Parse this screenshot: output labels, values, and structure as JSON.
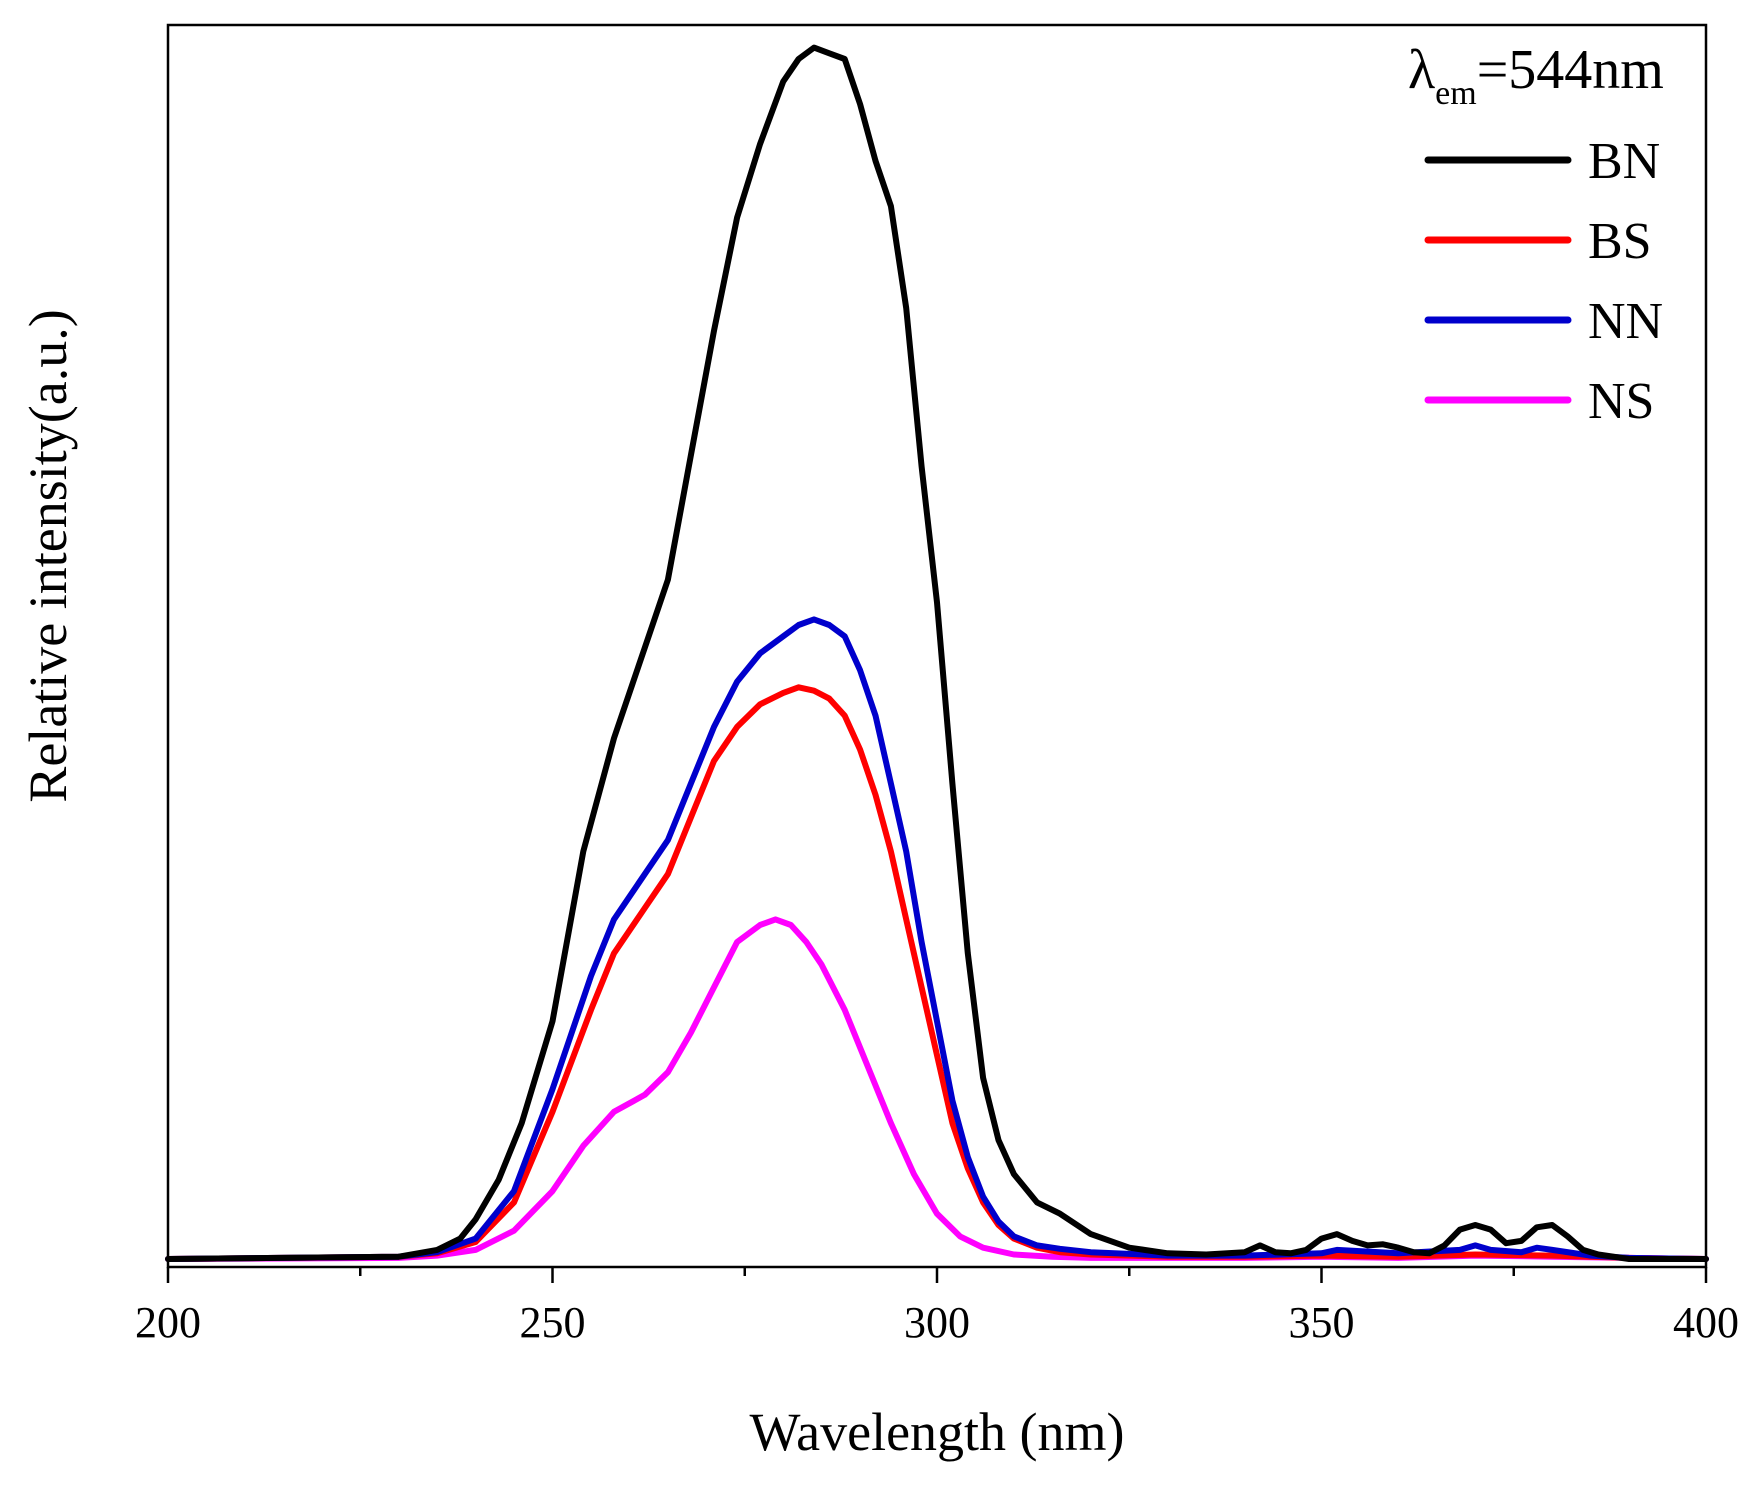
{
  "chart_data": {
    "type": "line",
    "title": "",
    "xlabel": "Wavelength (nm)",
    "ylabel": "Relative intensity(a.u.)",
    "xlim": [
      200,
      400
    ],
    "ylim": [
      0,
      1.09
    ],
    "x_ticks": [
      200,
      250,
      300,
      350,
      400
    ],
    "y_ticks_labeled": false,
    "grid": false,
    "legend_position": "top-right",
    "annotation": {
      "symbol": "λ",
      "subscript": "em",
      "text": "=544nm"
    },
    "series": [
      {
        "name": "BN",
        "color": "#000000",
        "x": [
          200,
          230,
          235,
          238,
          240,
          243,
          246,
          250,
          254,
          258,
          262,
          265,
          268,
          271,
          274,
          277,
          280,
          282,
          284,
          286,
          288,
          290,
          292,
          294,
          296,
          298,
          300,
          302,
          304,
          306,
          308,
          310,
          313,
          316,
          320,
          325,
          330,
          335,
          340,
          342,
          344,
          346,
          348,
          350,
          352,
          354,
          356,
          358,
          360,
          362,
          364,
          366,
          368,
          370,
          372,
          374,
          376,
          378,
          380,
          382,
          384,
          386,
          390,
          400
        ],
        "y": [
          0.0,
          0.002,
          0.008,
          0.018,
          0.035,
          0.07,
          0.12,
          0.21,
          0.36,
          0.46,
          0.54,
          0.6,
          0.71,
          0.82,
          0.92,
          0.985,
          1.04,
          1.06,
          1.07,
          1.065,
          1.06,
          1.02,
          0.97,
          0.93,
          0.84,
          0.7,
          0.58,
          0.42,
          0.27,
          0.16,
          0.105,
          0.075,
          0.05,
          0.04,
          0.022,
          0.01,
          0.005,
          0.004,
          0.006,
          0.012,
          0.006,
          0.005,
          0.008,
          0.018,
          0.022,
          0.016,
          0.012,
          0.013,
          0.01,
          0.006,
          0.005,
          0.012,
          0.026,
          0.03,
          0.026,
          0.014,
          0.016,
          0.028,
          0.03,
          0.02,
          0.008,
          0.004,
          0.0,
          0.0
        ]
      },
      {
        "name": "BS",
        "color": "#ff0000",
        "x": [
          200,
          230,
          235,
          240,
          245,
          250,
          255,
          258,
          262,
          265,
          268,
          271,
          274,
          277,
          280,
          282,
          284,
          286,
          288,
          290,
          292,
          294,
          296,
          298,
          300,
          302,
          304,
          306,
          308,
          310,
          313,
          316,
          320,
          330,
          340,
          350,
          360,
          370,
          380,
          390,
          400
        ],
        "y": [
          0.0,
          0.002,
          0.005,
          0.015,
          0.05,
          0.13,
          0.22,
          0.27,
          0.31,
          0.34,
          0.39,
          0.44,
          0.47,
          0.49,
          0.5,
          0.505,
          0.502,
          0.495,
          0.48,
          0.45,
          0.41,
          0.36,
          0.3,
          0.24,
          0.18,
          0.12,
          0.08,
          0.05,
          0.03,
          0.018,
          0.01,
          0.006,
          0.004,
          0.002,
          0.002,
          0.003,
          0.002,
          0.004,
          0.003,
          0.001,
          0.0
        ]
      },
      {
        "name": "NN",
        "color": "#0000cc",
        "x": [
          200,
          230,
          235,
          240,
          245,
          250,
          255,
          258,
          262,
          265,
          268,
          271,
          274,
          277,
          280,
          282,
          284,
          286,
          288,
          290,
          292,
          294,
          296,
          298,
          300,
          302,
          304,
          306,
          308,
          310,
          313,
          316,
          320,
          330,
          340,
          350,
          352,
          360,
          368,
          370,
          372,
          376,
          378,
          380,
          385,
          390,
          400
        ],
        "y": [
          0.0,
          0.002,
          0.006,
          0.018,
          0.06,
          0.15,
          0.25,
          0.3,
          0.34,
          0.37,
          0.42,
          0.47,
          0.51,
          0.535,
          0.55,
          0.56,
          0.565,
          0.56,
          0.55,
          0.52,
          0.48,
          0.42,
          0.36,
          0.28,
          0.21,
          0.14,
          0.09,
          0.055,
          0.033,
          0.02,
          0.012,
          0.009,
          0.006,
          0.003,
          0.003,
          0.005,
          0.008,
          0.005,
          0.008,
          0.012,
          0.008,
          0.006,
          0.01,
          0.008,
          0.003,
          0.001,
          0.0
        ]
      },
      {
        "name": "NS",
        "color": "#ff00ff",
        "x": [
          200,
          230,
          235,
          240,
          245,
          250,
          254,
          258,
          262,
          265,
          268,
          271,
          274,
          277,
          279,
          281,
          283,
          285,
          288,
          291,
          294,
          297,
          300,
          303,
          306,
          310,
          315,
          320,
          330,
          340,
          350,
          360,
          370,
          380,
          390,
          400
        ],
        "y": [
          0.0,
          0.001,
          0.003,
          0.008,
          0.025,
          0.06,
          0.1,
          0.13,
          0.145,
          0.165,
          0.2,
          0.24,
          0.28,
          0.295,
          0.3,
          0.295,
          0.28,
          0.26,
          0.22,
          0.17,
          0.12,
          0.075,
          0.04,
          0.02,
          0.01,
          0.004,
          0.002,
          0.001,
          0.001,
          0.001,
          0.002,
          0.001,
          0.003,
          0.002,
          0.001,
          0.0
        ]
      }
    ]
  }
}
